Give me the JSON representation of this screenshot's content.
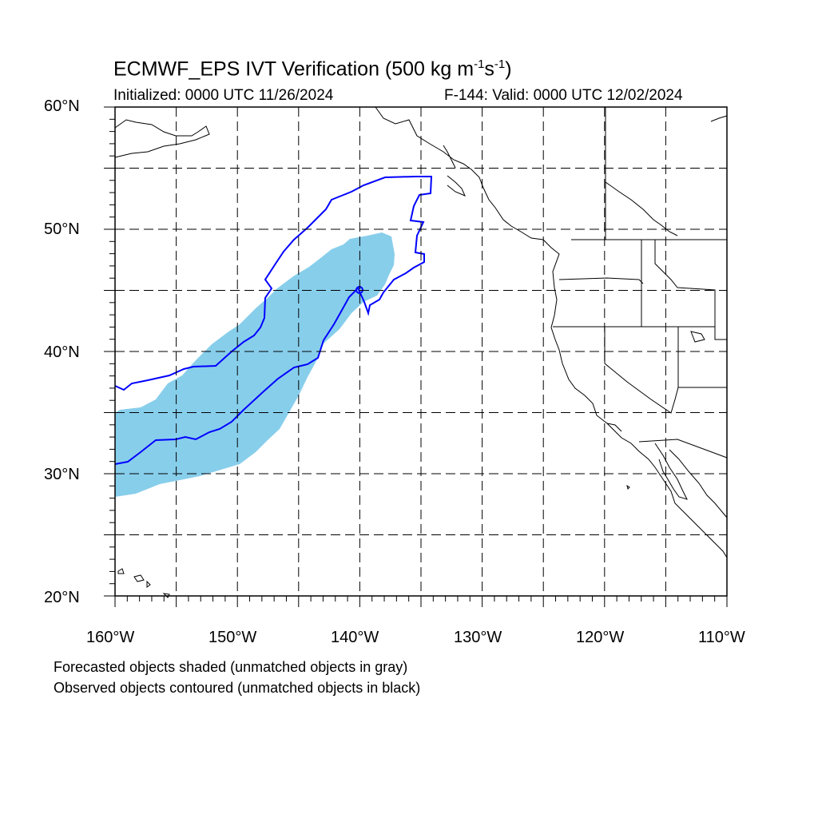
{
  "header": {
    "title_main": "ECMWF_EPS IVT Verification (500 kg m",
    "title_exp1": "-1",
    "title_mid": "s",
    "title_exp2": "-1",
    "title_end": ")",
    "initialized": "Initialized: 0000 UTC 11/26/2024",
    "valid": "F-144: Valid: 0000 UTC 12/02/2024"
  },
  "axes": {
    "lat_labels": [
      "60°N",
      "50°N",
      "40°N",
      "30°N",
      "20°N"
    ],
    "lon_labels": [
      "160°W",
      "150°W",
      "140°W",
      "130°W",
      "120°W",
      "110°W"
    ],
    "lat_range": [
      20,
      60
    ],
    "lon_range": [
      -160,
      -110
    ],
    "grid": "dashed"
  },
  "legend_notes": {
    "line1": "Forecasted objects shaded (unmatched objects in gray)",
    "line2": "Observed objects contoured (unmatched objects in black)"
  },
  "colors": {
    "forecast_fill": "#87ceeb",
    "observed_contour": "#0000ff",
    "coastline": "#000000",
    "grid": "#000000"
  }
}
